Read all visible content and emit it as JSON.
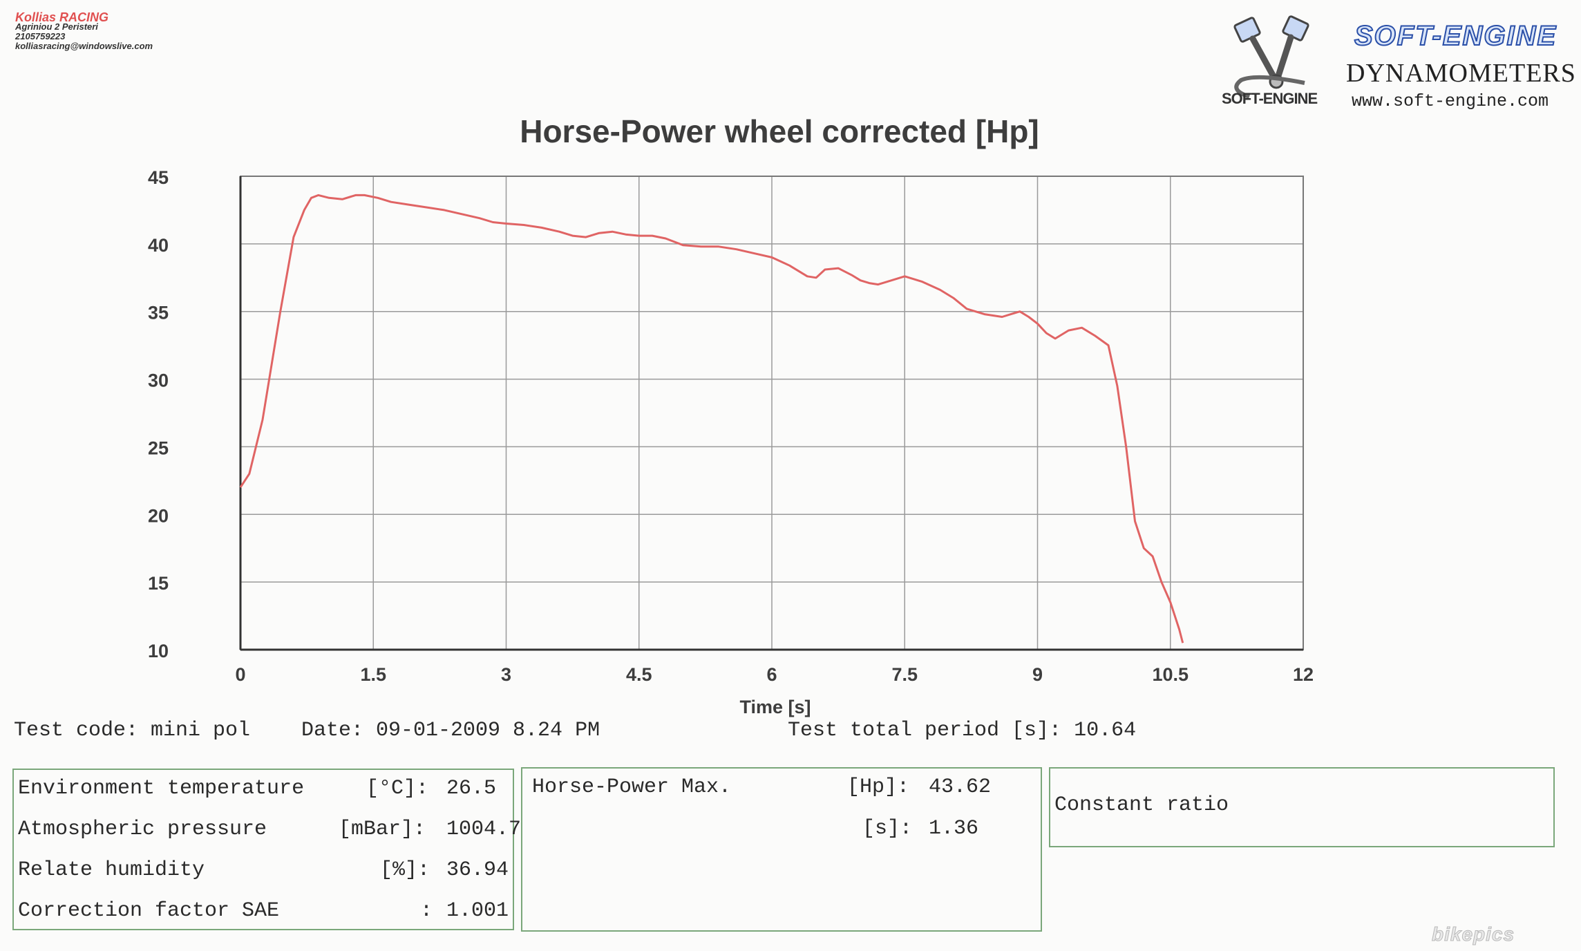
{
  "company": {
    "name": "Kollias RACING",
    "address": "Agriniou 2 Peristeri",
    "phone": "2105759223",
    "email": "kolliasracing@windowslive.com"
  },
  "logo": {
    "brand": "SOFT-ENGINE",
    "subtitle": "DYNAMOMETERS",
    "url": "www.soft-engine.com",
    "mark_text": "SOFT-ENGINE",
    "mark_icon": "piston-icon"
  },
  "chart_data": {
    "type": "line",
    "title": "Horse-Power wheel corrected [Hp]",
    "xlabel": "Time [s]",
    "ylabel": "",
    "xlim": [
      0,
      12
    ],
    "ylim": [
      10,
      45
    ],
    "xticks": [
      "0",
      "1.5",
      "3",
      "4.5",
      "6",
      "7.5",
      "9",
      "10.5",
      "12"
    ],
    "yticks": [
      "45",
      "40",
      "35",
      "30",
      "25",
      "20",
      "15",
      "10"
    ],
    "grid": true,
    "line_color": "#e06464",
    "series": [
      {
        "x": [
          0,
          0.1,
          0.25,
          0.45,
          0.6,
          0.72,
          0.8,
          0.88,
          1.0,
          1.15,
          1.3,
          1.4,
          1.55,
          1.7,
          1.9,
          2.1,
          2.3,
          2.5,
          2.7,
          2.85,
          3.0,
          3.2,
          3.4,
          3.6,
          3.75,
          3.9,
          4.05,
          4.2,
          4.35,
          4.5,
          4.65,
          4.8,
          5.0,
          5.2,
          5.4,
          5.6,
          5.8,
          6.0,
          6.2,
          6.4,
          6.5,
          6.6,
          6.75,
          6.9,
          7.0,
          7.1,
          7.2,
          7.3,
          7.5,
          7.7,
          7.9,
          8.05,
          8.2,
          8.4,
          8.6,
          8.7,
          8.8,
          8.9,
          9.0,
          9.1,
          9.2,
          9.35,
          9.5,
          9.65,
          9.8,
          9.9,
          10.0,
          10.1,
          10.2,
          10.3,
          10.4,
          10.5,
          10.6,
          10.64
        ],
        "y": [
          22,
          23,
          27,
          35,
          40.5,
          42.5,
          43.4,
          43.6,
          43.4,
          43.3,
          43.6,
          43.6,
          43.4,
          43.1,
          42.9,
          42.7,
          42.5,
          42.2,
          41.9,
          41.6,
          41.5,
          41.4,
          41.2,
          40.9,
          40.6,
          40.5,
          40.8,
          40.9,
          40.7,
          40.6,
          40.6,
          40.4,
          39.9,
          39.8,
          39.8,
          39.6,
          39.3,
          39.0,
          38.4,
          37.6,
          37.5,
          38.1,
          38.2,
          37.7,
          37.3,
          37.1,
          37.0,
          37.2,
          37.6,
          37.2,
          36.6,
          36.0,
          35.2,
          34.8,
          34.6,
          34.8,
          35.0,
          34.6,
          34.1,
          33.4,
          33.0,
          33.6,
          33.8,
          33.2,
          32.5,
          29.5,
          25.0,
          19.5,
          17.5,
          16.9,
          15.0,
          13.5,
          11.5,
          10.5
        ]
      }
    ]
  },
  "test_info": {
    "test_code": "Test code: mini pol",
    "date": "Date: 09-01-2009 8.24 PM",
    "total_period": "Test total period [s]: 10.64"
  },
  "environment": {
    "rows": [
      {
        "label": "Environment temperature",
        "unit": "[°C]:",
        "value": "26.5"
      },
      {
        "label": "Atmospheric pressure",
        "unit": "[mBar]:",
        "value": "1004.7"
      },
      {
        "label": "Relate humidity",
        "unit": "[%]:",
        "value": "36.94"
      },
      {
        "label": "Correction factor SAE",
        "unit": ":",
        "value": "1.001"
      }
    ]
  },
  "max_power": {
    "label": "Horse-Power Max.",
    "hp_unit": "[Hp]:",
    "hp_value": "43.62",
    "s_unit": "[s]:",
    "s_value": "1.36"
  },
  "constant": {
    "label": "Constant ratio"
  },
  "watermark": "bikepics"
}
